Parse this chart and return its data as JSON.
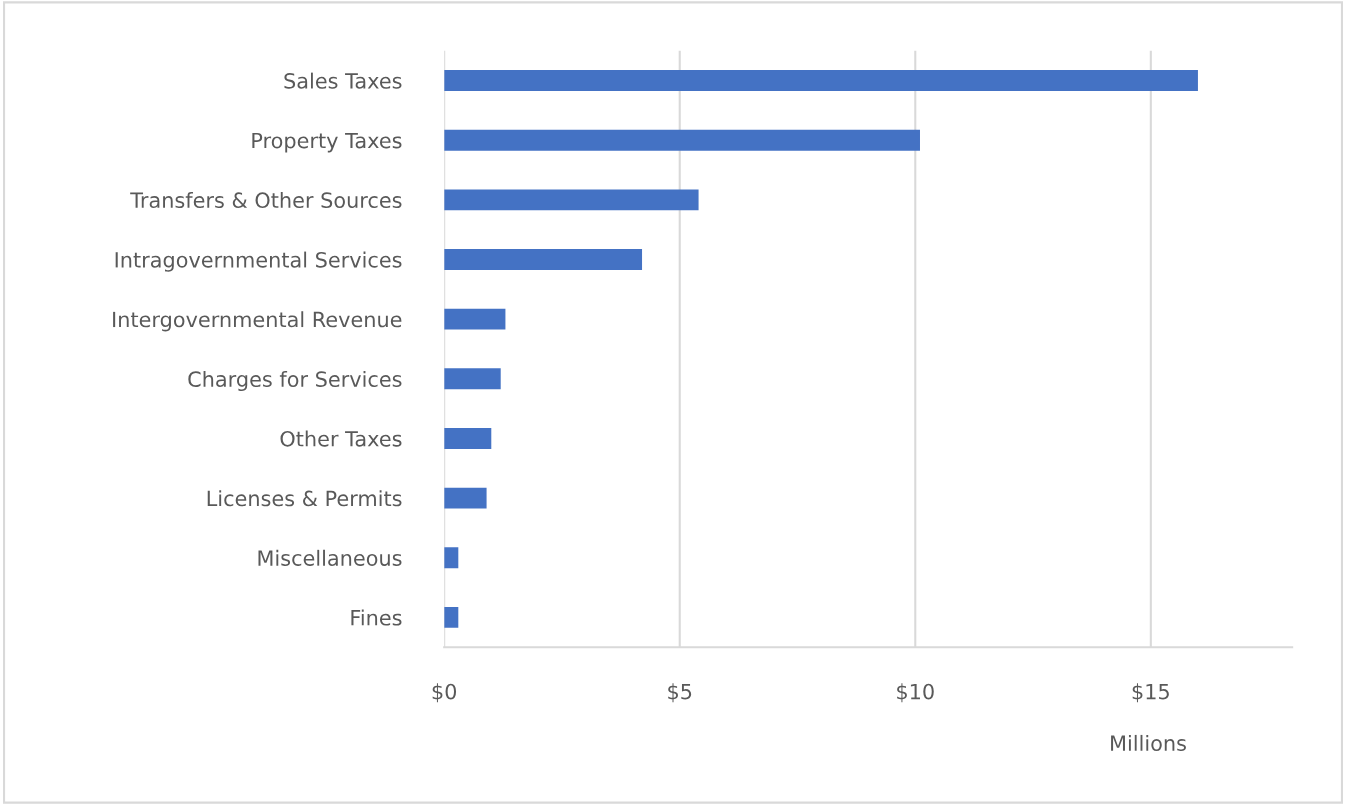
{
  "chart_data": {
    "type": "bar",
    "orientation": "horizontal",
    "xlabel": "Millions",
    "categories": [
      "Sales Taxes",
      "Property Taxes",
      "Transfers & Other Sources",
      "Intragovernmental Services",
      "Intergovernmental Revenue",
      "Charges for Services",
      "Other Taxes",
      "Licenses & Permits",
      "Miscellaneous",
      "Fines"
    ],
    "values": [
      16.0,
      10.1,
      5.4,
      4.2,
      1.3,
      1.2,
      1.0,
      0.9,
      0.3,
      0.3
    ],
    "color": "#4472c4",
    "xlim": [
      0,
      18
    ],
    "xticks": [
      {
        "value": 0,
        "label": "$0"
      },
      {
        "value": 5,
        "label": "$5"
      },
      {
        "value": 10,
        "label": "$10"
      },
      {
        "value": 15,
        "label": "$15"
      }
    ],
    "grid": "x"
  }
}
